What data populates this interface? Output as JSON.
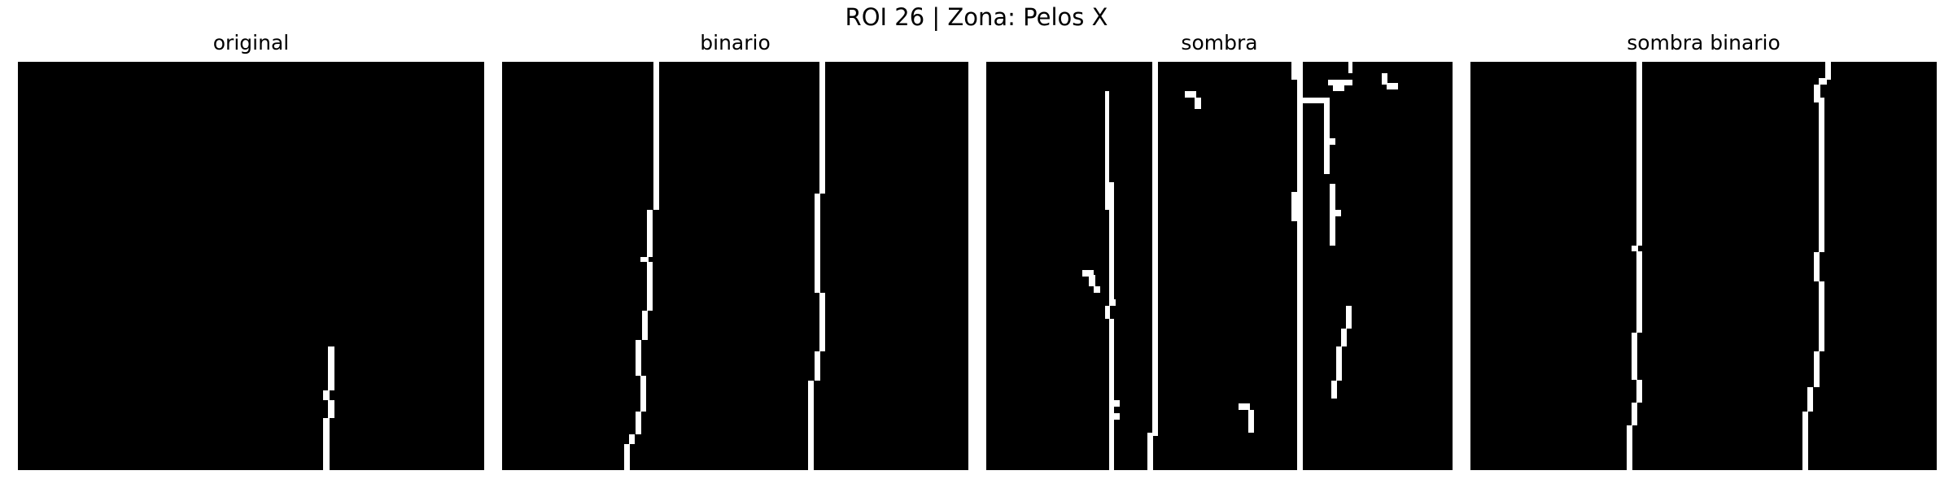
{
  "figure": {
    "title": "ROI 26 | Zona:  Pelos X"
  },
  "panels": [
    {
      "title": "original"
    },
    {
      "title": "binario"
    },
    {
      "title": "sombra"
    },
    {
      "title": "sombra binario"
    }
  ],
  "colors": {
    "background": "#000000",
    "foreground": "#ffffff"
  }
}
